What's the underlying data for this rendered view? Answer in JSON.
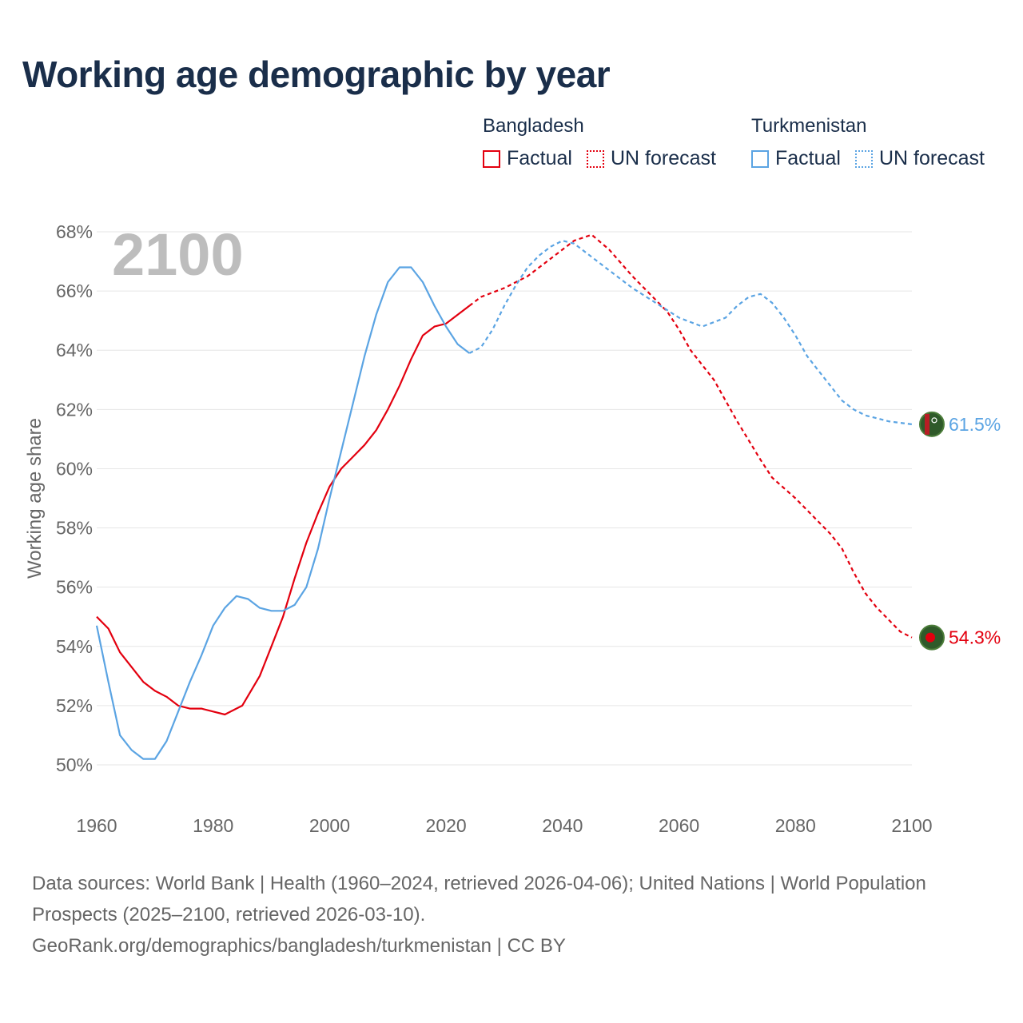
{
  "title": "Working age demographic by year",
  "legend": {
    "bangladesh": {
      "country": "Bangladesh",
      "factual": "Factual",
      "forecast": "UN forecast",
      "color": "#e3000f"
    },
    "turkmenistan": {
      "country": "Turkmenistan",
      "factual": "Factual",
      "forecast": "UN forecast",
      "color": "#5ba4e3"
    }
  },
  "source": {
    "line1": "Data sources: World Bank | Health (1960–2024, retrieved 2026-04-06); United Nations | World Population Prospects (2025–2100, retrieved 2026-03-10).",
    "line2": "GeoRank.org/demographics/bangladesh/turkmenistan | CC BY"
  },
  "chart_data": {
    "type": "line",
    "title": "Working age demographic by year",
    "xlabel": "",
    "ylabel": "Working age share",
    "year_label": "2100",
    "xlim": [
      1960,
      2100
    ],
    "ylim": [
      49,
      68.5
    ],
    "x_ticks": [
      1960,
      1980,
      2000,
      2020,
      2040,
      2060,
      2080,
      2100
    ],
    "y_ticks": [
      50,
      52,
      54,
      56,
      58,
      60,
      62,
      64,
      66,
      68
    ],
    "y_tick_labels": [
      "50%",
      "52%",
      "54%",
      "56%",
      "58%",
      "60%",
      "62%",
      "64%",
      "66%",
      "68%"
    ],
    "factual_until": 2024,
    "series": [
      {
        "name": "Bangladesh",
        "color": "#e3000f",
        "end_label": "54.3%",
        "points": [
          [
            1960,
            55.0
          ],
          [
            1962,
            54.6
          ],
          [
            1964,
            53.8
          ],
          [
            1966,
            53.3
          ],
          [
            1968,
            52.8
          ],
          [
            1970,
            52.5
          ],
          [
            1972,
            52.3
          ],
          [
            1974,
            52.0
          ],
          [
            1976,
            51.9
          ],
          [
            1978,
            51.9
          ],
          [
            1980,
            51.8
          ],
          [
            1982,
            51.7
          ],
          [
            1985,
            52.0
          ],
          [
            1988,
            53.0
          ],
          [
            1990,
            54.0
          ],
          [
            1992,
            55.0
          ],
          [
            1994,
            56.3
          ],
          [
            1996,
            57.5
          ],
          [
            1998,
            58.5
          ],
          [
            2000,
            59.4
          ],
          [
            2002,
            60.0
          ],
          [
            2004,
            60.4
          ],
          [
            2006,
            60.8
          ],
          [
            2008,
            61.3
          ],
          [
            2010,
            62.0
          ],
          [
            2012,
            62.8
          ],
          [
            2014,
            63.7
          ],
          [
            2016,
            64.5
          ],
          [
            2018,
            64.8
          ],
          [
            2020,
            64.9
          ],
          [
            2022,
            65.2
          ],
          [
            2024,
            65.5
          ],
          [
            2026,
            65.8
          ],
          [
            2030,
            66.1
          ],
          [
            2034,
            66.5
          ],
          [
            2038,
            67.1
          ],
          [
            2042,
            67.7
          ],
          [
            2045,
            67.9
          ],
          [
            2048,
            67.4
          ],
          [
            2052,
            66.5
          ],
          [
            2056,
            65.7
          ],
          [
            2058,
            65.3
          ],
          [
            2060,
            64.7
          ],
          [
            2062,
            64.0
          ],
          [
            2066,
            63.0
          ],
          [
            2070,
            61.6
          ],
          [
            2074,
            60.3
          ],
          [
            2076,
            59.7
          ],
          [
            2080,
            59.0
          ],
          [
            2084,
            58.2
          ],
          [
            2086,
            57.8
          ],
          [
            2088,
            57.3
          ],
          [
            2090,
            56.5
          ],
          [
            2092,
            55.8
          ],
          [
            2094,
            55.3
          ],
          [
            2096,
            54.9
          ],
          [
            2098,
            54.5
          ],
          [
            2100,
            54.3
          ]
        ]
      },
      {
        "name": "Turkmenistan",
        "color": "#5ba4e3",
        "end_label": "61.5%",
        "points": [
          [
            1960,
            54.7
          ],
          [
            1962,
            52.8
          ],
          [
            1964,
            51.0
          ],
          [
            1966,
            50.5
          ],
          [
            1968,
            50.2
          ],
          [
            1970,
            50.2
          ],
          [
            1972,
            50.8
          ],
          [
            1974,
            51.8
          ],
          [
            1976,
            52.8
          ],
          [
            1978,
            53.7
          ],
          [
            1980,
            54.7
          ],
          [
            1982,
            55.3
          ],
          [
            1984,
            55.7
          ],
          [
            1986,
            55.6
          ],
          [
            1988,
            55.3
          ],
          [
            1990,
            55.2
          ],
          [
            1992,
            55.2
          ],
          [
            1994,
            55.4
          ],
          [
            1996,
            56.0
          ],
          [
            1998,
            57.3
          ],
          [
            2000,
            59.0
          ],
          [
            2002,
            60.6
          ],
          [
            2004,
            62.2
          ],
          [
            2006,
            63.8
          ],
          [
            2008,
            65.2
          ],
          [
            2010,
            66.3
          ],
          [
            2012,
            66.8
          ],
          [
            2014,
            66.8
          ],
          [
            2016,
            66.3
          ],
          [
            2018,
            65.5
          ],
          [
            2020,
            64.8
          ],
          [
            2022,
            64.2
          ],
          [
            2024,
            63.9
          ],
          [
            2026,
            64.1
          ],
          [
            2028,
            64.7
          ],
          [
            2030,
            65.5
          ],
          [
            2032,
            66.2
          ],
          [
            2034,
            66.8
          ],
          [
            2036,
            67.2
          ],
          [
            2038,
            67.5
          ],
          [
            2040,
            67.7
          ],
          [
            2042,
            67.6
          ],
          [
            2044,
            67.3
          ],
          [
            2048,
            66.7
          ],
          [
            2052,
            66.1
          ],
          [
            2056,
            65.6
          ],
          [
            2060,
            65.1
          ],
          [
            2064,
            64.8
          ],
          [
            2068,
            65.1
          ],
          [
            2070,
            65.5
          ],
          [
            2072,
            65.8
          ],
          [
            2074,
            65.9
          ],
          [
            2076,
            65.6
          ],
          [
            2078,
            65.1
          ],
          [
            2080,
            64.5
          ],
          [
            2082,
            63.8
          ],
          [
            2084,
            63.3
          ],
          [
            2086,
            62.8
          ],
          [
            2088,
            62.3
          ],
          [
            2090,
            62.0
          ],
          [
            2092,
            61.8
          ],
          [
            2094,
            61.7
          ],
          [
            2096,
            61.6
          ],
          [
            2100,
            61.5
          ]
        ]
      }
    ]
  }
}
